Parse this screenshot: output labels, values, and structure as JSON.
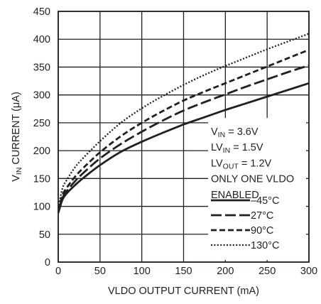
{
  "chart_data": {
    "type": "line",
    "title": "",
    "xlabel": "VLDO OUTPUT CURRENT (mA)",
    "ylabel": {
      "main": "V",
      "sub": "IN",
      "rest": " CURRENT (μA)"
    },
    "xlim": [
      0,
      300
    ],
    "ylim": [
      0,
      450
    ],
    "x_ticks": [
      0,
      50,
      100,
      150,
      200,
      250,
      300
    ],
    "y_ticks": [
      0,
      50,
      100,
      150,
      200,
      250,
      300,
      350,
      400,
      450
    ],
    "grid": true,
    "legend_position": "bottom-right",
    "conditions": [
      {
        "main": "V",
        "sub": "IN",
        "rest": " = 3.6V"
      },
      {
        "main": "LV",
        "sub": "IN",
        "rest": " = 1.5V"
      },
      {
        "main": "LV",
        "sub": "OUT",
        "rest": " = 1.2V"
      },
      {
        "main": "ONLY ONE VLDO",
        "sub": "",
        "rest": ""
      },
      {
        "main": "ENABLED",
        "sub": "",
        "rest": ""
      }
    ],
    "x": [
      0,
      5,
      10,
      20,
      30,
      50,
      75,
      100,
      125,
      150,
      175,
      200,
      225,
      250,
      275,
      300
    ],
    "series": [
      {
        "name": "–45°C",
        "style": "solid",
        "values": [
          88,
          112,
          123,
          138,
          151,
          174,
          198,
          216,
          232,
          247,
          260,
          273,
          285,
          297,
          309,
          321
        ]
      },
      {
        "name": "27°C",
        "style": "longdash",
        "values": [
          90,
          115,
          127,
          145,
          160,
          186,
          212,
          234,
          254,
          272,
          287,
          301,
          315,
          328,
          341,
          353
        ]
      },
      {
        "name": "90°C",
        "style": "dash",
        "values": [
          92,
          120,
          133,
          153,
          169,
          197,
          226,
          250,
          271,
          290,
          306,
          321,
          336,
          351,
          366,
          381
        ]
      },
      {
        "name": "130°C",
        "style": "dot",
        "values": [
          97,
          132,
          147,
          170,
          187,
          217,
          250,
          276,
          298,
          318,
          336,
          352,
          367,
          382,
          396,
          410
        ]
      }
    ]
  }
}
